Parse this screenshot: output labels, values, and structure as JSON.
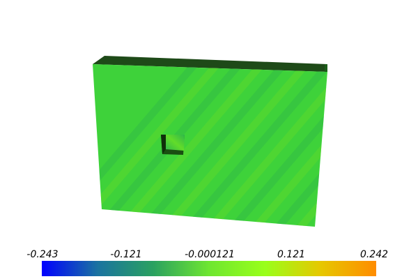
{
  "scalar_bar": {
    "ticks": [
      {
        "label": "-0.243",
        "value": -0.243
      },
      {
        "label": "-0.121",
        "value": -0.121
      },
      {
        "label": "-0.000121",
        "value": -0.000121
      },
      {
        "label": "0.121",
        "value": 0.121
      },
      {
        "label": "0.242",
        "value": 0.242
      }
    ],
    "range": [
      -0.243,
      0.242
    ],
    "colormap": [
      "#0000ff",
      "#1a73a0",
      "#2aa160",
      "#6ee630",
      "#99ff1a",
      "#e6c800",
      "#ff8c00"
    ]
  },
  "model": {
    "face_color": "#3ed23a",
    "top_edge_color": "#1e4a18",
    "side_edge_color": "#1c5e1a",
    "band_color_dark": "#2fb84a",
    "band_color_light": "#62dc2a"
  }
}
